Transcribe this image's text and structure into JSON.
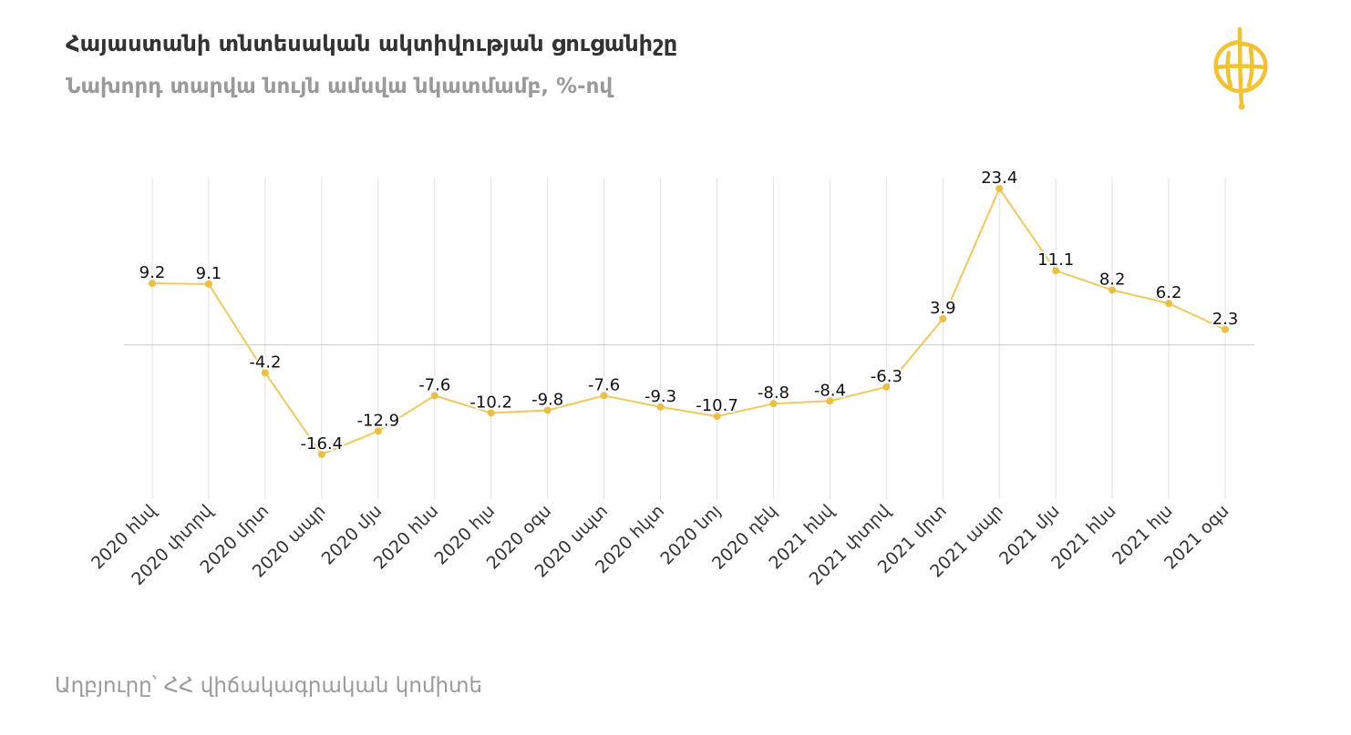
{
  "header": {
    "title": "Հայաստանի տնտեսական ակտիվության ցուցանիշը",
    "subtitle": "Նախորդ տարվա նույն ամսվա նկատմամբ, %-ով"
  },
  "footer": {
    "source": "Աղբյուրը՝ ՀՀ վիճակագրական կոմիտե"
  },
  "logo": {
    "icon": "circle-logo-icon",
    "color": "#f2c230"
  },
  "colors": {
    "line": "#f0c95a",
    "point": "#ebc040",
    "grid": "#e2e2e2",
    "zero": "#cccccc"
  },
  "chart_data": {
    "type": "line",
    "title": "Հայաստանի տնտեսական ակտիվության ցուցանիշը",
    "subtitle": "Նախորդ տարվա նույն ամսվա նկատմամբ, %-ով",
    "categories": [
      "2020 հնվ",
      "2020 փտրվ",
      "2020 մրտ",
      "2020 ապր",
      "2020 մյս",
      "2020 հնս",
      "2020 հլս",
      "2020 օգս",
      "2020 սպտ",
      "2020 հկտ",
      "2020 նոյ",
      "2020 դեկ",
      "2021 հնվ",
      "2021 փտրվ",
      "2021 մրտ",
      "2021 ապր",
      "2021 մյս",
      "2021 հնս",
      "2021 հլս",
      "2021 օգս"
    ],
    "values": [
      9.2,
      9.1,
      -4.2,
      -16.4,
      -12.9,
      -7.6,
      -10.2,
      -9.8,
      -7.6,
      -9.3,
      -10.7,
      -8.8,
      -8.4,
      -6.3,
      3.9,
      23.4,
      11.1,
      8.2,
      6.2,
      2.3
    ],
    "data_labels": [
      "9.2",
      "9.1",
      "-4.2",
      "-16.4",
      "-12.9",
      "-7.6",
      "-10.2",
      "-9.8",
      "-7.6",
      "-9.3",
      "-10.7",
      "-8.8",
      "-8.4",
      "-6.3",
      "3.9",
      "23.4",
      "11.1",
      "8.2",
      "6.2",
      "2.3"
    ],
    "ylim": [
      -19,
      23.4
    ],
    "grid": "vertical",
    "xlabel": "",
    "ylabel": ""
  }
}
